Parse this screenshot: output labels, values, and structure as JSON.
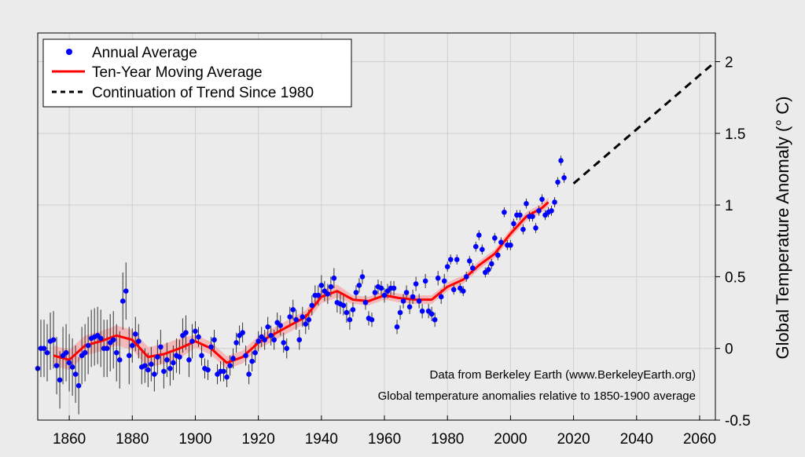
{
  "chart_data": {
    "type": "scatter",
    "ylabel": "Global Temperature Anomaly (° C)",
    "xlim": [
      1850,
      2065
    ],
    "ylim": [
      -0.5,
      2.2
    ],
    "x_ticks": [
      1860,
      1880,
      1900,
      1920,
      1940,
      1960,
      1980,
      2000,
      2020,
      2040,
      2060
    ],
    "y_ticks": [
      -0.5,
      0,
      0.5,
      1,
      1.5,
      2
    ],
    "y_tick_labels": [
      "-0.5",
      "0",
      "0.5",
      "1",
      "1.5",
      "2"
    ],
    "grid": true,
    "legend_position": "top-left",
    "legend": [
      "Annual Average",
      "Ten-Year Moving Average",
      "Continuation of Trend Since 1980"
    ],
    "annotations": [
      "Data from Berkeley Earth (www.BerkeleyEarth.org)",
      "Global temperature anomalies relative to 1850-1900 average"
    ],
    "colors": {
      "annual": "#0000ff",
      "moving_average": "#ff0000",
      "uncertainty_band": "#f4b3b3",
      "trend": "#000000",
      "error_bars": "#333333"
    },
    "series": [
      {
        "name": "Annual Average",
        "x": [
          1850,
          1851,
          1852,
          1853,
          1854,
          1855,
          1856,
          1857,
          1858,
          1859,
          1860,
          1861,
          1862,
          1863,
          1864,
          1865,
          1866,
          1867,
          1868,
          1869,
          1870,
          1871,
          1872,
          1873,
          1874,
          1875,
          1876,
          1877,
          1878,
          1879,
          1880,
          1881,
          1882,
          1883,
          1884,
          1885,
          1886,
          1887,
          1888,
          1889,
          1890,
          1891,
          1892,
          1893,
          1894,
          1895,
          1896,
          1897,
          1898,
          1899,
          1900,
          1901,
          1902,
          1903,
          1904,
          1905,
          1906,
          1907,
          1908,
          1909,
          1910,
          1911,
          1912,
          1913,
          1914,
          1915,
          1916,
          1917,
          1918,
          1919,
          1920,
          1921,
          1922,
          1923,
          1924,
          1925,
          1926,
          1927,
          1928,
          1929,
          1930,
          1931,
          1932,
          1933,
          1934,
          1935,
          1936,
          1937,
          1938,
          1939,
          1940,
          1941,
          1942,
          1943,
          1944,
          1945,
          1946,
          1947,
          1948,
          1949,
          1950,
          1951,
          1952,
          1953,
          1954,
          1955,
          1956,
          1957,
          1958,
          1959,
          1960,
          1961,
          1962,
          1963,
          1964,
          1965,
          1966,
          1967,
          1968,
          1969,
          1970,
          1971,
          1972,
          1973,
          1974,
          1975,
          1976,
          1977,
          1978,
          1979,
          1980,
          1981,
          1982,
          1983,
          1984,
          1985,
          1986,
          1987,
          1988,
          1989,
          1990,
          1991,
          1992,
          1993,
          1994,
          1995,
          1996,
          1997,
          1998,
          1999,
          2000,
          2001,
          2002,
          2003,
          2004,
          2005,
          2006,
          2007,
          2008,
          2009,
          2010,
          2011,
          2012,
          2013,
          2014,
          2015,
          2016,
          2017
        ],
        "y": [
          -0.14,
          0.0,
          0.0,
          -0.03,
          0.05,
          0.06,
          -0.12,
          -0.22,
          -0.05,
          -0.03,
          -0.1,
          -0.13,
          -0.18,
          -0.26,
          -0.05,
          -0.03,
          0.02,
          0.07,
          0.08,
          0.09,
          0.07,
          0.0,
          0.0,
          0.04,
          0.06,
          -0.03,
          -0.08,
          0.33,
          0.4,
          -0.05,
          0.02,
          0.1,
          0.05,
          -0.13,
          -0.12,
          -0.15,
          -0.11,
          -0.18,
          -0.06,
          0.01,
          -0.16,
          -0.08,
          -0.14,
          -0.1,
          -0.05,
          -0.06,
          0.09,
          0.11,
          -0.08,
          0.05,
          0.12,
          0.08,
          -0.05,
          -0.14,
          -0.15,
          0.01,
          0.06,
          -0.18,
          -0.16,
          -0.16,
          -0.2,
          -0.12,
          -0.07,
          0.04,
          0.09,
          0.11,
          -0.05,
          -0.18,
          -0.09,
          -0.03,
          0.05,
          0.08,
          0.06,
          0.15,
          0.09,
          0.06,
          0.18,
          0.16,
          0.04,
          0.0,
          0.22,
          0.27,
          0.2,
          0.06,
          0.22,
          0.17,
          0.2,
          0.3,
          0.37,
          0.37,
          0.44,
          0.4,
          0.38,
          0.43,
          0.49,
          0.32,
          0.31,
          0.3,
          0.25,
          0.2,
          0.27,
          0.39,
          0.44,
          0.5,
          0.32,
          0.21,
          0.2,
          0.39,
          0.43,
          0.42,
          0.37,
          0.4,
          0.42,
          0.42,
          0.15,
          0.25,
          0.33,
          0.39,
          0.29,
          0.36,
          0.45,
          0.33,
          0.26,
          0.47,
          0.26,
          0.24,
          0.2,
          0.49,
          0.36,
          0.47,
          0.57,
          0.62,
          0.41,
          0.62,
          0.42,
          0.4,
          0.5,
          0.61,
          0.56,
          0.71,
          0.79,
          0.69,
          0.53,
          0.55,
          0.59,
          0.77,
          0.65,
          0.74,
          0.95,
          0.72,
          0.72,
          0.87,
          0.93,
          0.93,
          0.83,
          1.01,
          0.92,
          0.92,
          0.84,
          0.96,
          1.04,
          0.93,
          0.95,
          0.96,
          1.02,
          1.16,
          1.31,
          1.19
        ]
      },
      {
        "name": "Ten-Year Moving Average",
        "x": [
          1855,
          1860,
          1865,
          1870,
          1875,
          1880,
          1885,
          1890,
          1895,
          1900,
          1905,
          1910,
          1915,
          1920,
          1925,
          1930,
          1935,
          1940,
          1945,
          1950,
          1955,
          1960,
          1965,
          1970,
          1975,
          1980,
          1985,
          1990,
          1995,
          2000,
          2005,
          2010,
          2012
        ],
        "y": [
          -0.05,
          -0.08,
          0.02,
          0.05,
          0.09,
          0.06,
          -0.06,
          -0.04,
          0.0,
          0.05,
          0.0,
          -0.1,
          -0.06,
          0.04,
          0.1,
          0.16,
          0.22,
          0.36,
          0.4,
          0.34,
          0.33,
          0.37,
          0.35,
          0.34,
          0.34,
          0.43,
          0.48,
          0.58,
          0.66,
          0.8,
          0.92,
          0.98,
          1.02
        ]
      },
      {
        "name": "Continuation of Trend Since 1980",
        "x": [
          2020,
          2065
        ],
        "y": [
          1.15,
          2.0
        ]
      }
    ]
  }
}
